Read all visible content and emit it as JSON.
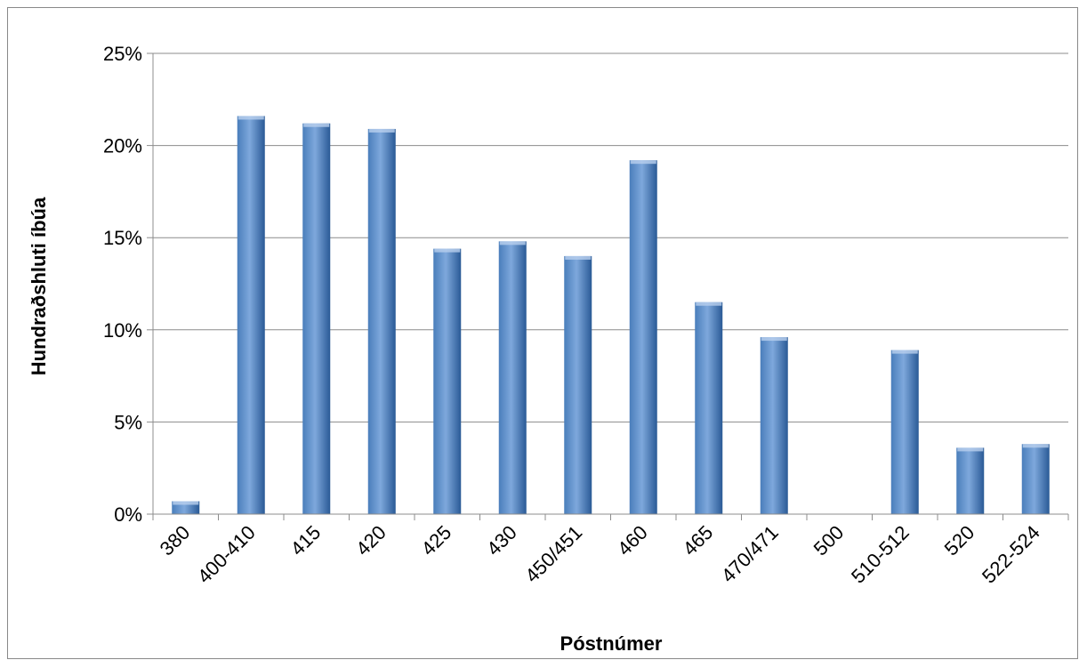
{
  "chart_data": {
    "type": "bar",
    "title": "",
    "xlabel": "Póstnúmer",
    "ylabel": "Hundraðshluti íbúa",
    "categories": [
      "380",
      "400-410",
      "415",
      "420",
      "425",
      "430",
      "450/451",
      "460",
      "465",
      "470/471",
      "500",
      "510-512",
      "520",
      "522-524"
    ],
    "values": [
      0.7,
      21.6,
      21.2,
      20.9,
      14.4,
      14.8,
      14.0,
      19.2,
      11.5,
      9.6,
      0,
      8.9,
      3.6,
      3.8
    ],
    "ylim": [
      0,
      25
    ],
    "yticks": [
      0,
      5,
      10,
      15,
      20,
      25
    ],
    "ytick_labels": [
      "0%",
      "5%",
      "10%",
      "15%",
      "20%",
      "25%"
    ],
    "grid": true,
    "legend": "none",
    "bar_color": "#4a7ebb",
    "bar_color_light": "#7ea8dc",
    "bar_color_dark": "#2a5a96"
  }
}
